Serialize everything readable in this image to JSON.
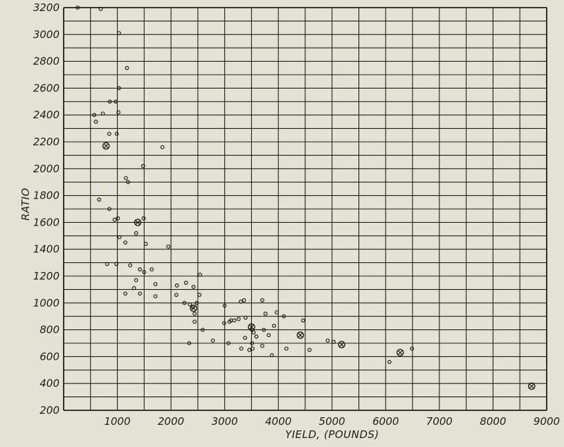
{
  "chart_data": {
    "type": "scatter",
    "title": "",
    "xlabel": "YIELD, (POUNDS)",
    "ylabel": "RATIO",
    "xlim": [
      0,
      9000
    ],
    "ylim": [
      200,
      3200
    ],
    "x_ticks": [
      1000,
      2000,
      3000,
      4000,
      5000,
      6000,
      7000,
      8000,
      9000
    ],
    "y_ticks": [
      200,
      400,
      600,
      800,
      1000,
      1200,
      1400,
      1600,
      1800,
      2000,
      2200,
      2400,
      2600,
      2800,
      3000,
      3200
    ],
    "x_grid_step": 500,
    "y_grid_step": 100,
    "grid": true,
    "legend": "none",
    "colors": {
      "ink": "#1e1c18",
      "paper": "#e4e1d6"
    },
    "series": [
      {
        "marker": "small-circle",
        "points": [
          [
            260,
            3200
          ],
          [
            690,
            3190
          ],
          [
            1030,
            3010
          ],
          [
            1180,
            2750
          ],
          [
            1030,
            2600
          ],
          [
            860,
            2500
          ],
          [
            970,
            2500
          ],
          [
            1020,
            2420
          ],
          [
            570,
            2400
          ],
          [
            730,
            2410
          ],
          [
            600,
            2350
          ],
          [
            850,
            2260
          ],
          [
            990,
            2260
          ],
          [
            1840,
            2160
          ],
          [
            1480,
            2020
          ],
          [
            1160,
            1930
          ],
          [
            1200,
            1900
          ],
          [
            660,
            1770
          ],
          [
            850,
            1700
          ],
          [
            950,
            1620
          ],
          [
            1010,
            1630
          ],
          [
            1490,
            1630
          ],
          [
            1350,
            1520
          ],
          [
            1040,
            1490
          ],
          [
            1150,
            1450
          ],
          [
            1530,
            1440
          ],
          [
            1950,
            1420
          ],
          [
            810,
            1290
          ],
          [
            980,
            1290
          ],
          [
            1240,
            1280
          ],
          [
            1420,
            1250
          ],
          [
            1640,
            1250
          ],
          [
            1500,
            1230
          ],
          [
            1350,
            1170
          ],
          [
            1710,
            1140
          ],
          [
            2110,
            1130
          ],
          [
            2280,
            1150
          ],
          [
            2540,
            1210
          ],
          [
            2420,
            1120
          ],
          [
            1310,
            1110
          ],
          [
            1150,
            1070
          ],
          [
            1420,
            1070
          ],
          [
            2100,
            1060
          ],
          [
            2530,
            1060
          ],
          [
            1710,
            1050
          ],
          [
            2480,
            1000
          ],
          [
            2350,
            990
          ],
          [
            2400,
            970
          ],
          [
            2250,
            1000
          ],
          [
            2440,
            920
          ],
          [
            3000,
            980
          ],
          [
            3300,
            1010
          ],
          [
            3360,
            1020
          ],
          [
            3700,
            1020
          ],
          [
            3260,
            880
          ],
          [
            3180,
            870
          ],
          [
            3390,
            890
          ],
          [
            3120,
            870
          ],
          [
            3090,
            860
          ],
          [
            2990,
            850
          ],
          [
            2440,
            860
          ],
          [
            3970,
            930
          ],
          [
            4100,
            900
          ],
          [
            4460,
            870
          ],
          [
            3760,
            920
          ],
          [
            3920,
            830
          ],
          [
            3730,
            800
          ],
          [
            3510,
            800
          ],
          [
            3590,
            750
          ],
          [
            3820,
            760
          ],
          [
            3540,
            780
          ],
          [
            3380,
            740
          ],
          [
            3510,
            700
          ],
          [
            3700,
            680
          ],
          [
            3520,
            660
          ],
          [
            3310,
            660
          ],
          [
            3460,
            650
          ],
          [
            3070,
            700
          ],
          [
            2780,
            720
          ],
          [
            2590,
            800
          ],
          [
            2340,
            700
          ],
          [
            3880,
            610
          ],
          [
            4150,
            660
          ],
          [
            4580,
            650
          ],
          [
            4920,
            720
          ],
          [
            5030,
            710
          ],
          [
            6070,
            560
          ],
          [
            6490,
            660
          ]
        ]
      },
      {
        "marker": "crossed-circle",
        "points": [
          [
            790,
            2170
          ],
          [
            1380,
            1600
          ],
          [
            2420,
            960
          ],
          [
            3500,
            820
          ],
          [
            4410,
            760
          ],
          [
            5180,
            690
          ],
          [
            6270,
            630
          ],
          [
            8720,
            380
          ]
        ]
      }
    ]
  }
}
